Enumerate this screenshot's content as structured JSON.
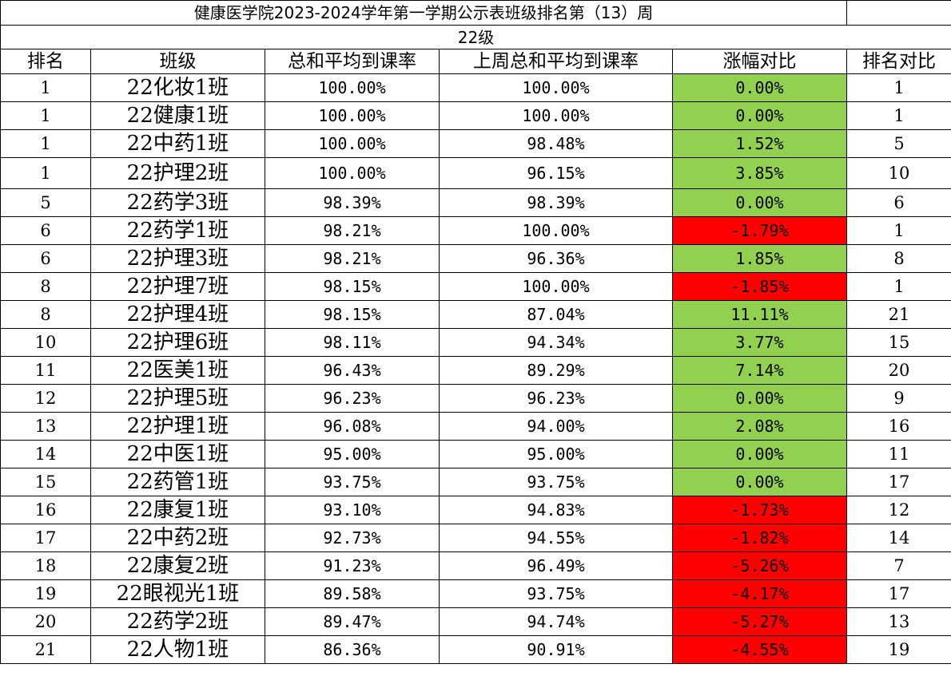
{
  "title": "健康医学院2023-2024学年第一学期公示表班级排名第（13）周",
  "grade": "22级",
  "colors": {
    "up": "#92D050",
    "down": "#FF0000"
  },
  "headers": {
    "rank": "排名",
    "class": "班级",
    "rate": "总和平均到课率",
    "last_rate": "上周总和平均到课率",
    "change": "涨幅对比",
    "rank_compare": "排名对比"
  },
  "rows": [
    {
      "rank": "1",
      "class": "22化妆1班",
      "rate": "100.00%",
      "last_rate": "100.00%",
      "change": "0.00%",
      "rank_compare": "1",
      "trend": "up"
    },
    {
      "rank": "1",
      "class": "22健康1班",
      "rate": "100.00%",
      "last_rate": "100.00%",
      "change": "0.00%",
      "rank_compare": "1",
      "trend": "up"
    },
    {
      "rank": "1",
      "class": "22中药1班",
      "rate": "100.00%",
      "last_rate": "98.48%",
      "change": "1.52%",
      "rank_compare": "5",
      "trend": "up"
    },
    {
      "rank": "1",
      "class": "22护理2班",
      "rate": "100.00%",
      "last_rate": "96.15%",
      "change": "3.85%",
      "rank_compare": "10",
      "trend": "up"
    },
    {
      "rank": "5",
      "class": "22药学3班",
      "rate": "98.39%",
      "last_rate": "98.39%",
      "change": "0.00%",
      "rank_compare": "6",
      "trend": "up"
    },
    {
      "rank": "6",
      "class": "22药学1班",
      "rate": "98.21%",
      "last_rate": "100.00%",
      "change": "-1.79%",
      "rank_compare": "1",
      "trend": "down"
    },
    {
      "rank": "6",
      "class": "22护理3班",
      "rate": "98.21%",
      "last_rate": "96.36%",
      "change": "1.85%",
      "rank_compare": "8",
      "trend": "up"
    },
    {
      "rank": "8",
      "class": "22护理7班",
      "rate": "98.15%",
      "last_rate": "100.00%",
      "change": "-1.85%",
      "rank_compare": "1",
      "trend": "down"
    },
    {
      "rank": "8",
      "class": "22护理4班",
      "rate": "98.15%",
      "last_rate": "87.04%",
      "change": "11.11%",
      "rank_compare": "21",
      "trend": "up"
    },
    {
      "rank": "10",
      "class": "22护理6班",
      "rate": "98.11%",
      "last_rate": "94.34%",
      "change": "3.77%",
      "rank_compare": "15",
      "trend": "up"
    },
    {
      "rank": "11",
      "class": "22医美1班",
      "rate": "96.43%",
      "last_rate": "89.29%",
      "change": "7.14%",
      "rank_compare": "20",
      "trend": "up"
    },
    {
      "rank": "12",
      "class": "22护理5班",
      "rate": "96.23%",
      "last_rate": "96.23%",
      "change": "0.00%",
      "rank_compare": "9",
      "trend": "up"
    },
    {
      "rank": "13",
      "class": "22护理1班",
      "rate": "96.08%",
      "last_rate": "94.00%",
      "change": "2.08%",
      "rank_compare": "16",
      "trend": "up"
    },
    {
      "rank": "14",
      "class": "22中医1班",
      "rate": "95.00%",
      "last_rate": "95.00%",
      "change": "0.00%",
      "rank_compare": "11",
      "trend": "up"
    },
    {
      "rank": "15",
      "class": "22药管1班",
      "rate": "93.75%",
      "last_rate": "93.75%",
      "change": "0.00%",
      "rank_compare": "17",
      "trend": "up"
    },
    {
      "rank": "16",
      "class": "22康复1班",
      "rate": "93.10%",
      "last_rate": "94.83%",
      "change": "-1.73%",
      "rank_compare": "12",
      "trend": "down"
    },
    {
      "rank": "17",
      "class": "22中药2班",
      "rate": "92.73%",
      "last_rate": "94.55%",
      "change": "-1.82%",
      "rank_compare": "14",
      "trend": "down"
    },
    {
      "rank": "18",
      "class": "22康复2班",
      "rate": "91.23%",
      "last_rate": "96.49%",
      "change": "-5.26%",
      "rank_compare": "7",
      "trend": "down"
    },
    {
      "rank": "19",
      "class": "22眼视光1班",
      "rate": "89.58%",
      "last_rate": "93.75%",
      "change": "-4.17%",
      "rank_compare": "17",
      "trend": "down"
    },
    {
      "rank": "20",
      "class": "22药学2班",
      "rate": "89.47%",
      "last_rate": "94.74%",
      "change": "-5.27%",
      "rank_compare": "13",
      "trend": "down"
    },
    {
      "rank": "21",
      "class": "22人物1班",
      "rate": "86.36%",
      "last_rate": "90.91%",
      "change": "-4.55%",
      "rank_compare": "19",
      "trend": "down"
    }
  ]
}
